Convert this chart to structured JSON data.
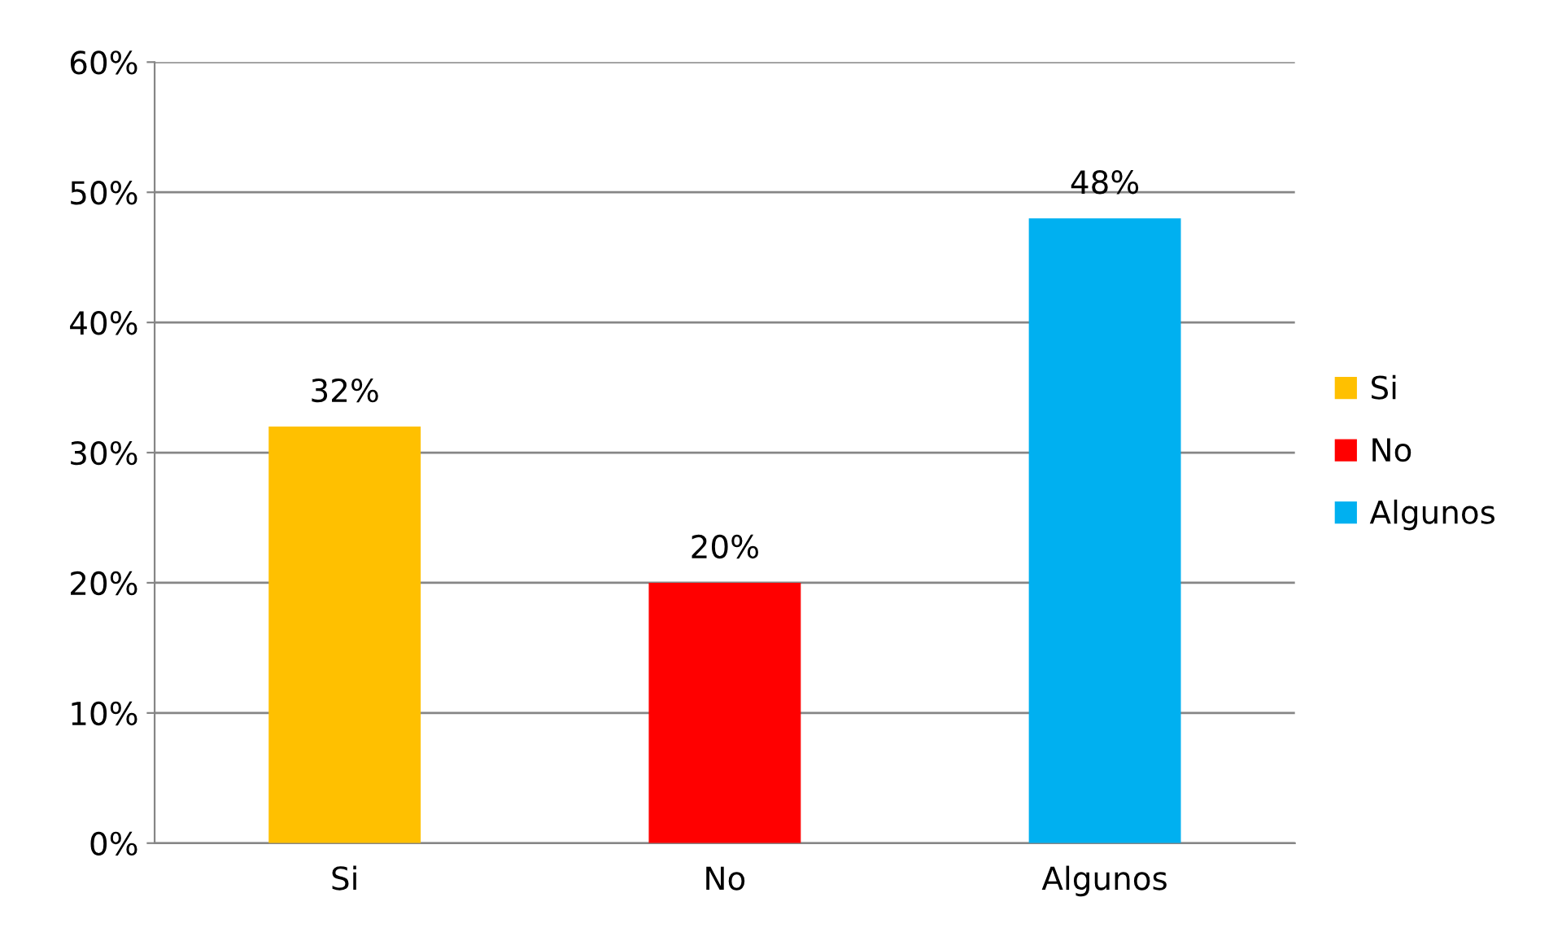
{
  "chart_data": {
    "type": "bar",
    "categories": [
      "Si",
      "No",
      "Algunos"
    ],
    "series": [
      {
        "name": "Si",
        "color": "#ffc000",
        "values": [
          32,
          null,
          null
        ],
        "value_labels": [
          "32%",
          null,
          null
        ]
      },
      {
        "name": "No",
        "color": "#ff0000",
        "values": [
          null,
          20,
          null
        ],
        "value_labels": [
          null,
          "20%",
          null
        ]
      },
      {
        "name": "Algunos",
        "color": "#00b0f0",
        "values": [
          null,
          null,
          48
        ],
        "value_labels": [
          null,
          null,
          "48%"
        ]
      }
    ],
    "ylim": [
      0,
      60
    ],
    "yticks": [
      {
        "value": 0,
        "label": "0%"
      },
      {
        "value": 10,
        "label": "10%"
      },
      {
        "value": 20,
        "label": "20%"
      },
      {
        "value": 30,
        "label": "30%"
      },
      {
        "value": 40,
        "label": "40%"
      },
      {
        "value": 50,
        "label": "50%"
      },
      {
        "value": 60,
        "label": "60%"
      }
    ],
    "grid": "y",
    "legend": "right"
  }
}
